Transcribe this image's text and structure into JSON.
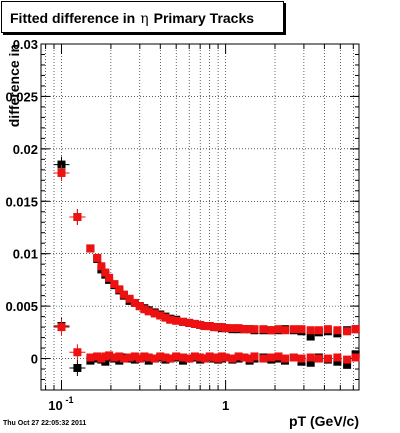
{
  "chart_data": {
    "type": "scatter",
    "title_prefix": "Fitted difference in",
    "title_symbol": "η",
    "title_suffix": "Primary Tracks",
    "xlabel": "pT (GeV/c)",
    "ylabel": "difference in",
    "x_scale": "log",
    "xlim": [
      0.075,
      6.5
    ],
    "ylim": [
      -0.003,
      0.03
    ],
    "grid": true,
    "x_ticks": [
      {
        "value": 0.1,
        "label": "10",
        "exponent": "-1"
      },
      {
        "value": 1,
        "label": "1",
        "exponent": ""
      }
    ],
    "y_ticks": [
      {
        "value": 0,
        "label": "0"
      },
      {
        "value": 0.005,
        "label": "0.005"
      },
      {
        "value": 0.01,
        "label": "0.01"
      },
      {
        "value": 0.015,
        "label": "0.015"
      },
      {
        "value": 0.02,
        "label": "0.02"
      },
      {
        "value": 0.025,
        "label": "0.025"
      },
      {
        "value": 0.03,
        "label": "0.03"
      }
    ],
    "series": [
      {
        "color": "#000000",
        "points": [
          [
            0.1,
            0.0185
          ],
          [
            0.125,
            0.0135
          ],
          [
            0.15,
            0.0105
          ],
          [
            0.165,
            0.0095
          ],
          [
            0.175,
            0.0085
          ],
          [
            0.185,
            0.008
          ],
          [
            0.195,
            0.0075
          ],
          [
            0.21,
            0.007
          ],
          [
            0.225,
            0.0065
          ],
          [
            0.24,
            0.006
          ],
          [
            0.26,
            0.0055
          ],
          [
            0.28,
            0.0053
          ],
          [
            0.3,
            0.005
          ],
          [
            0.32,
            0.0048
          ],
          [
            0.34,
            0.0046
          ],
          [
            0.37,
            0.0044
          ],
          [
            0.4,
            0.0042
          ],
          [
            0.43,
            0.004
          ],
          [
            0.46,
            0.0038
          ],
          [
            0.5,
            0.0037
          ],
          [
            0.55,
            0.0035
          ],
          [
            0.6,
            0.0034
          ],
          [
            0.65,
            0.0033
          ],
          [
            0.7,
            0.0032
          ],
          [
            0.75,
            0.0031
          ],
          [
            0.8,
            0.0031
          ],
          [
            0.85,
            0.003
          ],
          [
            0.9,
            0.003
          ],
          [
            0.95,
            0.0029
          ],
          [
            1.0,
            0.0029
          ],
          [
            1.1,
            0.0028
          ],
          [
            1.2,
            0.0028
          ],
          [
            1.3,
            0.0028
          ],
          [
            1.4,
            0.0028
          ],
          [
            1.5,
            0.0027
          ],
          [
            1.7,
            0.0027
          ],
          [
            1.9,
            0.0027
          ],
          [
            2.1,
            0.0027
          ],
          [
            2.3,
            0.0028
          ],
          [
            2.6,
            0.0027
          ],
          [
            2.9,
            0.0026
          ],
          [
            3.3,
            0.0021
          ],
          [
            3.7,
            0.0025
          ],
          [
            4.2,
            0.0026
          ],
          [
            4.8,
            0.0024
          ],
          [
            5.5,
            0.0027
          ],
          [
            6.2,
            0.0028
          ],
          [
            0.1,
            0.0031
          ],
          [
            0.125,
            -0.0009
          ],
          [
            0.15,
            -0.0002
          ],
          [
            0.165,
            0.0
          ],
          [
            0.175,
            -0.0001
          ],
          [
            0.185,
            -0.0003
          ],
          [
            0.195,
            0.0001
          ],
          [
            0.21,
            0.0
          ],
          [
            0.225,
            -0.0002
          ],
          [
            0.24,
            0.0001
          ],
          [
            0.26,
            0.0
          ],
          [
            0.28,
            -0.0001
          ],
          [
            0.3,
            0.0
          ],
          [
            0.32,
            0.0001
          ],
          [
            0.34,
            -0.0002
          ],
          [
            0.37,
            0.0
          ],
          [
            0.4,
            0.0001
          ],
          [
            0.43,
            -0.0001
          ],
          [
            0.46,
            0.0
          ],
          [
            0.5,
            0.0001
          ],
          [
            0.55,
            -0.0002
          ],
          [
            0.6,
            0.0
          ],
          [
            0.65,
            0.0001
          ],
          [
            0.7,
            -0.0001
          ],
          [
            0.75,
            0.0
          ],
          [
            0.8,
            0.0001
          ],
          [
            0.85,
            0.0
          ],
          [
            0.9,
            -0.0001
          ],
          [
            0.95,
            0.0
          ],
          [
            1.0,
            0.0001
          ],
          [
            1.1,
            -0.0001
          ],
          [
            1.2,
            0.0
          ],
          [
            1.3,
            0.0001
          ],
          [
            1.4,
            -0.0002
          ],
          [
            1.5,
            0.0
          ],
          [
            1.7,
            0.0001
          ],
          [
            1.9,
            -0.0001
          ],
          [
            2.1,
            0.0
          ],
          [
            2.3,
            -0.0002
          ],
          [
            2.6,
            0.0001
          ],
          [
            2.9,
            -0.0003
          ],
          [
            3.3,
            -0.0004
          ],
          [
            3.7,
            0.0001
          ],
          [
            4.2,
            -0.0001
          ],
          [
            4.8,
            -0.0003
          ],
          [
            5.5,
            -0.0006
          ],
          [
            6.2,
            0.0004
          ]
        ]
      },
      {
        "color": "#ee1111",
        "points": [
          [
            0.1,
            0.0177
          ],
          [
            0.125,
            0.0135
          ],
          [
            0.15,
            0.0105
          ],
          [
            0.165,
            0.0096
          ],
          [
            0.175,
            0.0088
          ],
          [
            0.185,
            0.0082
          ],
          [
            0.195,
            0.0077
          ],
          [
            0.21,
            0.0071
          ],
          [
            0.225,
            0.0066
          ],
          [
            0.24,
            0.0061
          ],
          [
            0.26,
            0.0057
          ],
          [
            0.28,
            0.0053
          ],
          [
            0.3,
            0.005
          ],
          [
            0.32,
            0.0047
          ],
          [
            0.34,
            0.0045
          ],
          [
            0.37,
            0.0043
          ],
          [
            0.4,
            0.0041
          ],
          [
            0.43,
            0.0039
          ],
          [
            0.46,
            0.0037
          ],
          [
            0.5,
            0.0036
          ],
          [
            0.55,
            0.0035
          ],
          [
            0.6,
            0.0034
          ],
          [
            0.65,
            0.0033
          ],
          [
            0.7,
            0.0032
          ],
          [
            0.75,
            0.0031
          ],
          [
            0.8,
            0.0031
          ],
          [
            0.85,
            0.003
          ],
          [
            0.9,
            0.003
          ],
          [
            0.95,
            0.003
          ],
          [
            1.0,
            0.0029
          ],
          [
            1.1,
            0.0029
          ],
          [
            1.2,
            0.0029
          ],
          [
            1.3,
            0.0028
          ],
          [
            1.4,
            0.0028
          ],
          [
            1.5,
            0.0028
          ],
          [
            1.7,
            0.0028
          ],
          [
            1.9,
            0.0027
          ],
          [
            2.1,
            0.0028
          ],
          [
            2.3,
            0.0027
          ],
          [
            2.6,
            0.0028
          ],
          [
            2.9,
            0.0028
          ],
          [
            3.3,
            0.0027
          ],
          [
            3.7,
            0.0027
          ],
          [
            4.2,
            0.0028
          ],
          [
            4.8,
            0.0027
          ],
          [
            5.5,
            0.0026
          ],
          [
            6.2,
            0.0028
          ],
          [
            0.1,
            0.003
          ],
          [
            0.125,
            0.0006
          ],
          [
            0.15,
            0.0001
          ],
          [
            0.165,
            0.0002
          ],
          [
            0.175,
            0.0
          ],
          [
            0.185,
            0.0002
          ],
          [
            0.195,
            0.0003
          ],
          [
            0.21,
            0.0001
          ],
          [
            0.225,
            0.0002
          ],
          [
            0.24,
            0.0
          ],
          [
            0.26,
            0.0001
          ],
          [
            0.28,
            0.0002
          ],
          [
            0.3,
            0.0
          ],
          [
            0.32,
            0.0002
          ],
          [
            0.34,
            0.0001
          ],
          [
            0.37,
            0.0
          ],
          [
            0.4,
            0.0002
          ],
          [
            0.43,
            0.0001
          ],
          [
            0.46,
            0.0
          ],
          [
            0.5,
            0.0002
          ],
          [
            0.55,
            0.0001
          ],
          [
            0.6,
            0.0
          ],
          [
            0.65,
            0.0002
          ],
          [
            0.7,
            0.0001
          ],
          [
            0.75,
            0.0
          ],
          [
            0.8,
            0.0002
          ],
          [
            0.85,
            0.0001
          ],
          [
            0.9,
            0.0
          ],
          [
            0.95,
            0.0002
          ],
          [
            1.0,
            0.0001
          ],
          [
            1.1,
            0.0
          ],
          [
            1.2,
            0.0002
          ],
          [
            1.3,
            0.0001
          ],
          [
            1.4,
            0.0
          ],
          [
            1.5,
            0.0002
          ],
          [
            1.7,
            0.0
          ],
          [
            1.9,
            0.0001
          ],
          [
            2.1,
            0.0002
          ],
          [
            2.3,
            0.0
          ],
          [
            2.6,
            0.0001
          ],
          [
            2.9,
            0.0
          ],
          [
            3.3,
            0.0001
          ],
          [
            3.7,
            0.0
          ],
          [
            4.2,
            0.0
          ],
          [
            4.8,
            0.0001
          ],
          [
            5.5,
            -0.0001
          ],
          [
            6.2,
            0.0001
          ]
        ]
      }
    ]
  },
  "footer": {
    "timestamp": "Thu Oct 27 22:05:32 2011"
  }
}
